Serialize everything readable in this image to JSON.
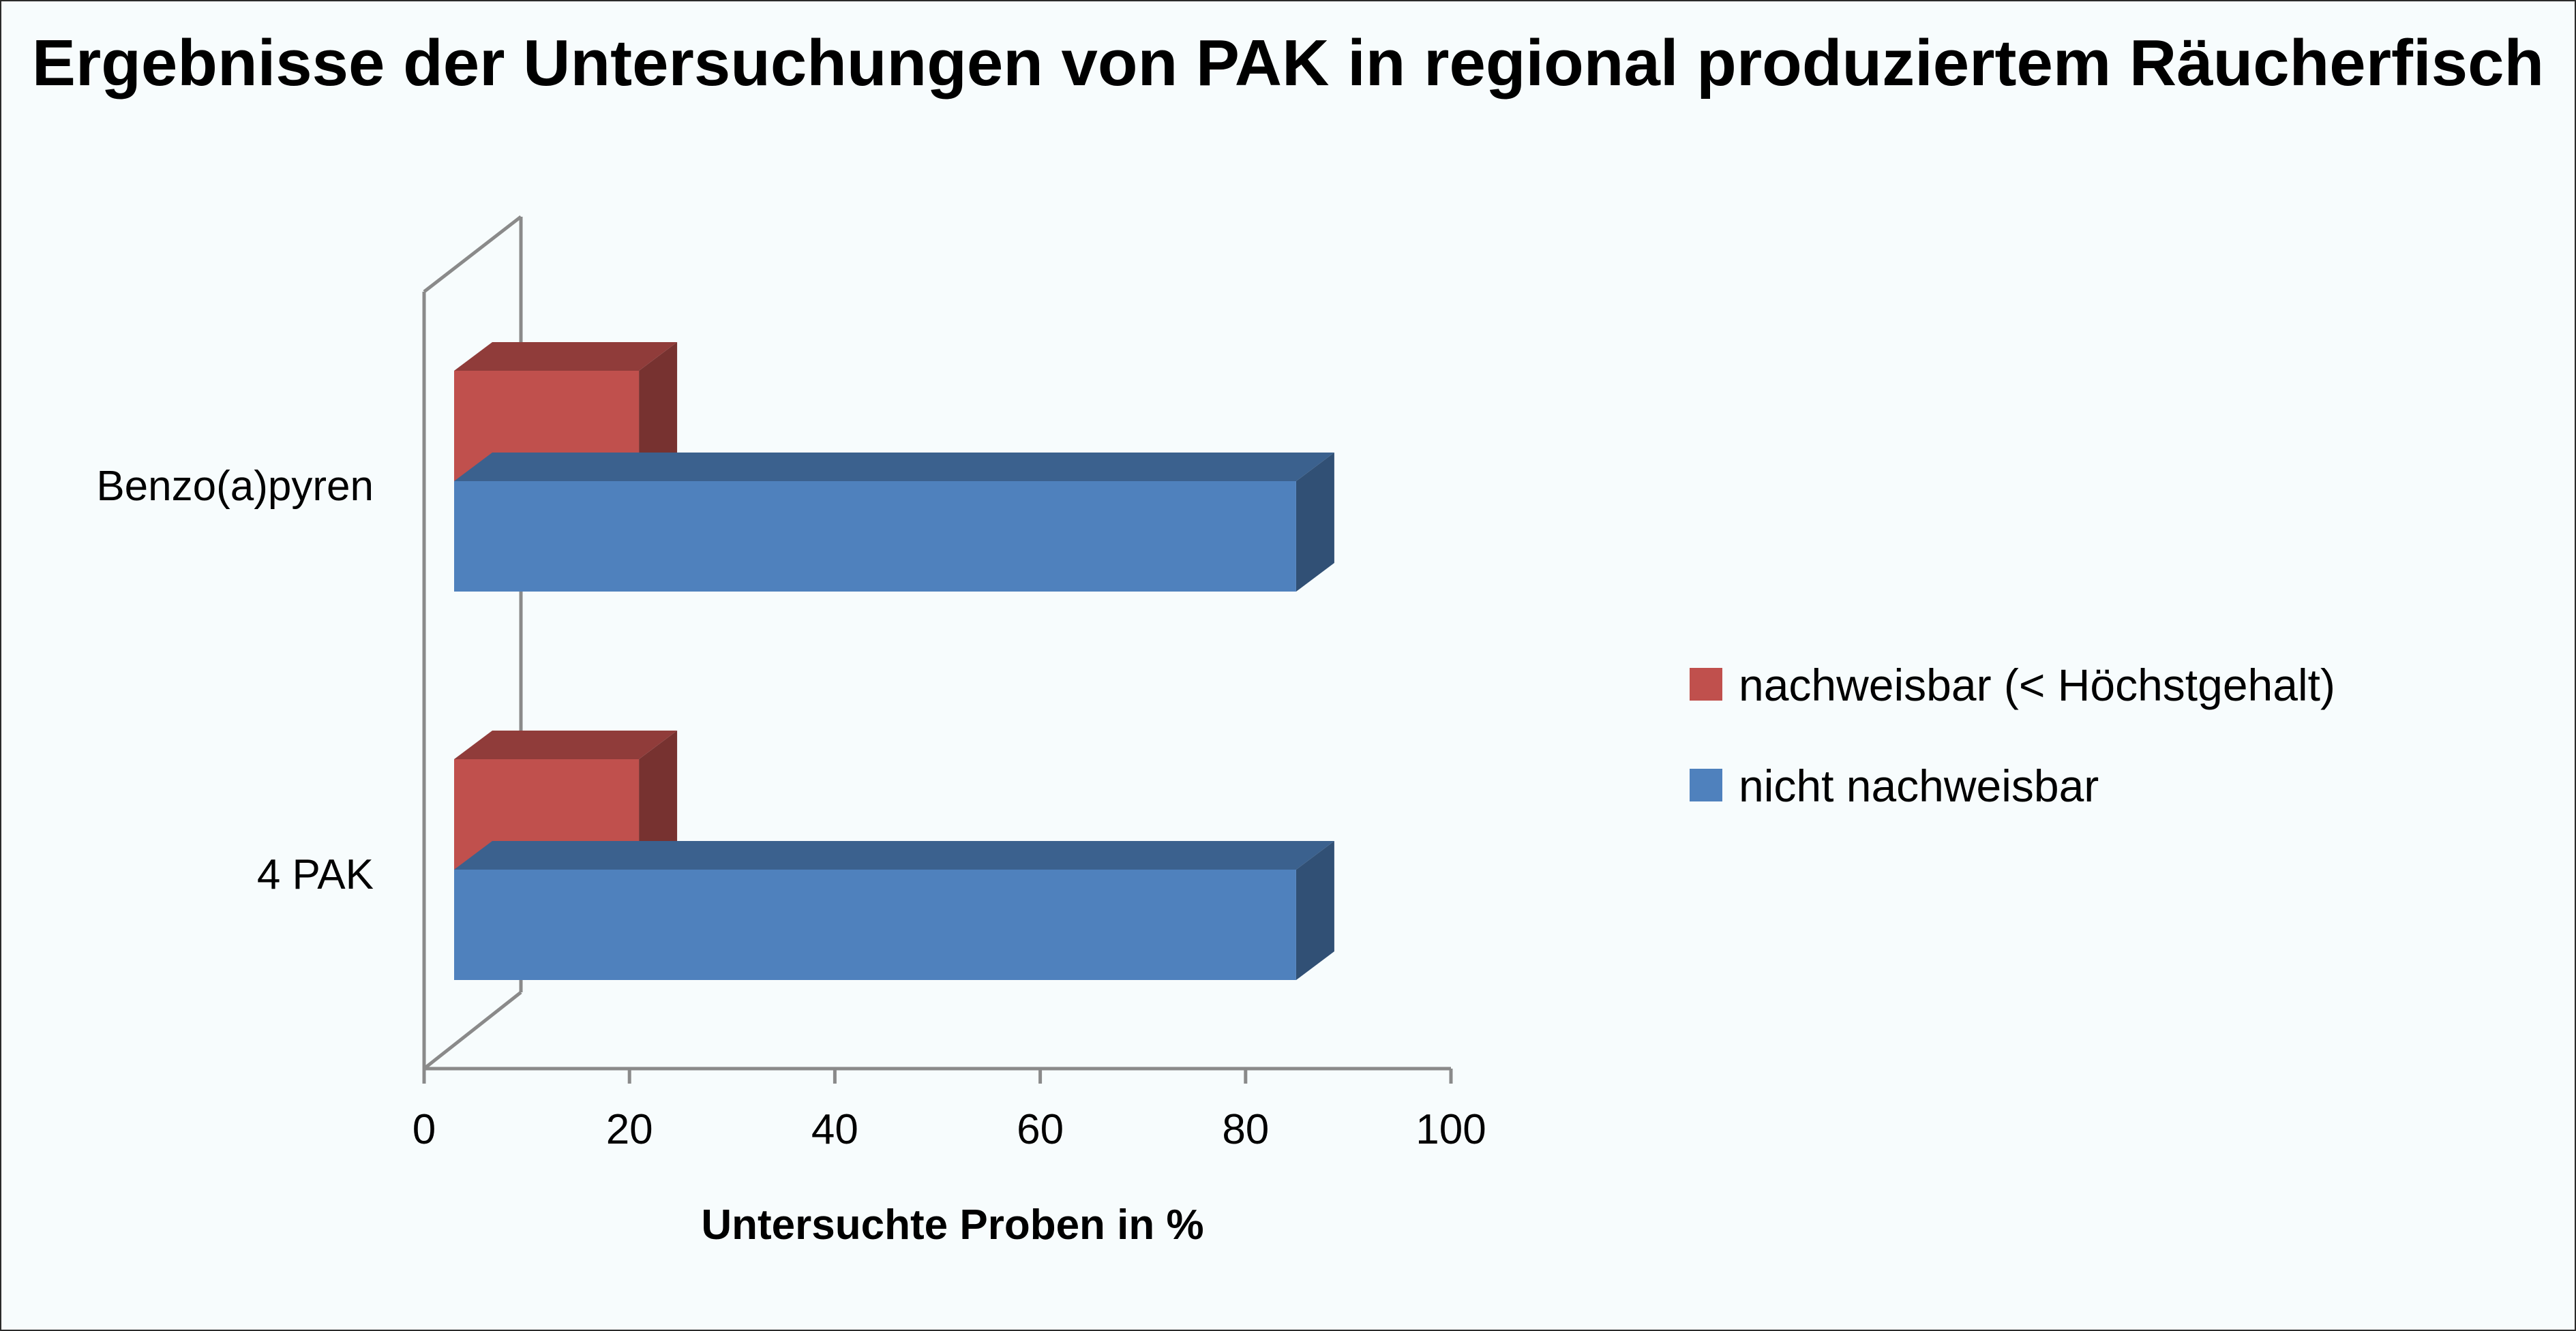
{
  "chart_data": {
    "type": "bar",
    "orientation": "horizontal",
    "style": "3d-clustered",
    "title": "Ergebnisse der Untersuchungen von PAK in regional produziertem Räucherfisch",
    "xlabel": "Untersuchte Proben in %",
    "ylabel": "",
    "xlim": [
      0,
      100
    ],
    "xticks": [
      "0",
      "20",
      "40",
      "60",
      "80",
      "100"
    ],
    "categories": [
      "Benzo(a)pyren",
      "4 PAK"
    ],
    "series": [
      {
        "name": "nachweisbar (< Höchstgehalt)",
        "values": [
          18,
          18
        ],
        "color": "#c0504d"
      },
      {
        "name": "nicht nachweisbar",
        "values": [
          82,
          82
        ],
        "color": "#4f81bd"
      }
    ],
    "legend_position": "right",
    "grid": false
  }
}
